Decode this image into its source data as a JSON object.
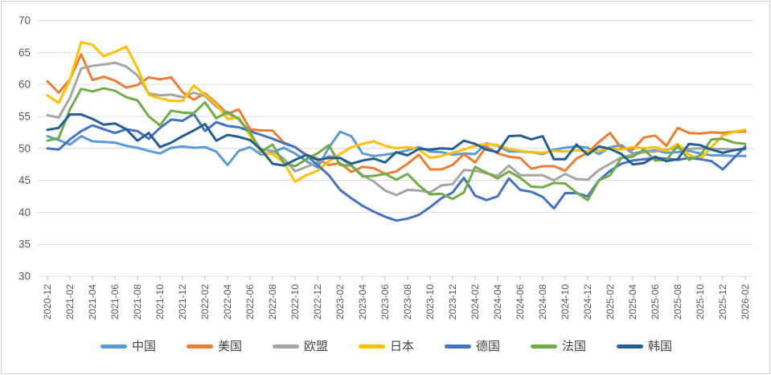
{
  "chart_data": {
    "type": "line",
    "title": "",
    "xlabel": "",
    "ylabel": "",
    "ylim": [
      30,
      70
    ],
    "yticks": [
      30,
      35,
      40,
      45,
      50,
      55,
      60,
      65,
      70
    ],
    "grid": "horizontal",
    "legend_position": "bottom",
    "x_label_every": 2,
    "x": [
      "2020-12",
      "2021-01",
      "2021-02",
      "2021-03",
      "2021-04",
      "2021-05",
      "2021-06",
      "2021-07",
      "2021-08",
      "2021-09",
      "2021-10",
      "2021-11",
      "2021-12",
      "2022-01",
      "2022-02",
      "2022-03",
      "2022-04",
      "2022-05",
      "2022-06",
      "2022-07",
      "2022-08",
      "2022-09",
      "2022-10",
      "2022-11",
      "2022-12",
      "2023-01",
      "2023-02",
      "2023-03",
      "2023-04",
      "2023-05",
      "2023-06",
      "2023-07",
      "2023-08",
      "2023-09",
      "2023-10",
      "2023-11",
      "2023-12",
      "2024-01",
      "2024-02",
      "2024-03",
      "2024-04",
      "2024-05",
      "2024-06",
      "2024-07",
      "2024-08",
      "2024-09",
      "2024-10",
      "2024-11",
      "2024-12",
      "2025-01",
      "2025-02",
      "2025-03",
      "2025-04",
      "2025-05",
      "2025-06",
      "2025-07",
      "2025-08",
      "2025-09",
      "2025-10",
      "2025-11",
      "2025-12",
      "2026-01",
      "2026-02"
    ],
    "series": [
      {
        "id": "china",
        "label": "中国",
        "color": "#5B9BD5",
        "values": [
          51.9,
          51.3,
          50.6,
          51.9,
          51.1,
          51.0,
          50.9,
          50.4,
          50.1,
          49.6,
          49.2,
          50.1,
          50.3,
          50.1,
          50.2,
          49.5,
          47.4,
          49.6,
          50.2,
          49.0,
          49.4,
          50.1,
          49.2,
          48.0,
          47.0,
          50.1,
          52.6,
          51.9,
          49.2,
          48.8,
          49.0,
          49.3,
          49.7,
          50.2,
          49.5,
          49.4,
          49.0,
          49.2,
          49.1,
          50.8,
          50.4,
          49.5,
          49.5,
          49.4,
          49.1,
          49.8,
          50.1,
          50.3,
          50.1,
          49.1,
          50.2,
          50.5,
          49.2,
          49.5,
          49.7,
          49.3,
          49.4,
          49.6,
          49.2,
          48.9,
          48.9,
          48.8,
          48.8
        ]
      },
      {
        "id": "usa",
        "label": "美国",
        "color": "#ED7D31",
        "values": [
          60.5,
          58.7,
          60.8,
          64.7,
          60.7,
          61.2,
          60.6,
          59.5,
          59.9,
          61.1,
          60.8,
          61.1,
          58.8,
          57.6,
          58.6,
          57.1,
          55.4,
          56.1,
          53.0,
          52.8,
          52.8,
          50.9,
          50.2,
          49.0,
          48.4,
          47.4,
          47.7,
          46.3,
          47.1,
          46.9,
          46.0,
          46.4,
          47.6,
          49.0,
          46.7,
          46.7,
          47.4,
          49.1,
          47.8,
          50.3,
          49.2,
          48.7,
          48.5,
          46.8,
          47.2,
          47.2,
          46.5,
          48.4,
          49.3,
          51.0,
          52.4,
          50.0,
          49.8,
          51.7,
          52.0,
          50.4,
          53.2,
          52.4,
          52.3,
          52.5,
          52.4,
          52.6,
          52.6
        ]
      },
      {
        "id": "eu",
        "label": "欧盟",
        "color": "#A5A5A5",
        "values": [
          55.2,
          54.8,
          57.9,
          62.5,
          62.9,
          63.1,
          63.4,
          62.8,
          61.4,
          58.6,
          58.3,
          58.4,
          58.0,
          58.7,
          58.2,
          56.5,
          55.5,
          54.6,
          52.1,
          49.8,
          49.6,
          48.4,
          46.4,
          47.1,
          47.8,
          48.8,
          48.5,
          47.3,
          45.8,
          44.8,
          43.4,
          42.7,
          43.5,
          43.4,
          43.1,
          44.2,
          44.4,
          46.6,
          46.5,
          46.1,
          45.7,
          47.3,
          45.8,
          45.8,
          45.8,
          45.0,
          46.0,
          45.2,
          45.1,
          46.6,
          47.6,
          48.6,
          49.0,
          49.4,
          49.5,
          49.8,
          50.1,
          49.9,
          50.0,
          49.9,
          49.9,
          49.8,
          49.8
        ]
      },
      {
        "id": "japan",
        "label": "日本",
        "color": "#FFC000",
        "values": [
          58.3,
          57.1,
          60.7,
          66.6,
          66.2,
          64.4,
          65.1,
          65.9,
          62.6,
          58.4,
          57.8,
          57.4,
          57.4,
          59.8,
          58.4,
          56.9,
          54.6,
          54.8,
          52.0,
          49.3,
          49.1,
          47.8,
          44.8,
          45.8,
          46.5,
          48.0,
          49.1,
          50.2,
          50.7,
          51.1,
          50.4,
          50.0,
          50.2,
          49.8,
          48.5,
          48.8,
          49.3,
          49.8,
          50.4,
          50.7,
          50.5,
          49.9,
          49.6,
          49.4,
          49.3,
          49.6,
          49.5,
          49.7,
          49.5,
          49.6,
          50.0,
          49.8,
          50.2,
          50.0,
          50.2,
          49.6,
          50.7,
          49.0,
          48.3,
          50.2,
          52.0,
          52.6,
          52.9
        ]
      },
      {
        "id": "germany",
        "label": "德国",
        "color": "#4472C4",
        "values": [
          50.0,
          49.8,
          51.4,
          52.7,
          53.6,
          53.0,
          52.4,
          53.0,
          52.7,
          51.5,
          53.2,
          54.5,
          54.3,
          55.4,
          52.7,
          54.1,
          53.5,
          53.3,
          52.7,
          52.1,
          51.5,
          50.8,
          50.2,
          48.9,
          47.4,
          45.8,
          43.5,
          42.2,
          41.0,
          40.1,
          39.3,
          38.7,
          39.0,
          39.6,
          40.8,
          42.2,
          43.1,
          45.4,
          42.6,
          41.9,
          42.5,
          45.3,
          43.5,
          43.2,
          42.4,
          40.6,
          43.0,
          43.0,
          42.5,
          45.0,
          46.5,
          47.6,
          48.1,
          48.3,
          48.5,
          48.4,
          48.2,
          48.5,
          48.3,
          48.0,
          46.7,
          48.5,
          50.3
        ]
      },
      {
        "id": "france",
        "label": "法国",
        "color": "#70AD47",
        "values": [
          51.2,
          51.6,
          56.1,
          59.3,
          58.9,
          59.4,
          59.0,
          58.0,
          57.5,
          55.0,
          53.6,
          55.9,
          55.6,
          55.5,
          57.2,
          54.7,
          55.7,
          54.6,
          52.5,
          49.5,
          50.6,
          47.7,
          47.2,
          48.3,
          49.2,
          50.5,
          47.4,
          47.3,
          45.6,
          45.7,
          46.0,
          45.1,
          46.0,
          44.2,
          42.8,
          42.9,
          42.1,
          43.1,
          47.1,
          46.2,
          45.3,
          46.4,
          45.4,
          44.0,
          43.9,
          44.6,
          44.5,
          43.1,
          41.9,
          45.0,
          45.8,
          48.5,
          48.7,
          49.8,
          48.1,
          48.2,
          50.4,
          48.2,
          48.9,
          51.4,
          51.5,
          50.9,
          50.7
        ]
      },
      {
        "id": "korea",
        "label": "韩国",
        "color": "#255E91",
        "values": [
          52.9,
          53.2,
          55.3,
          55.3,
          54.6,
          53.7,
          53.9,
          53.0,
          51.2,
          52.4,
          50.2,
          50.9,
          51.9,
          52.8,
          53.8,
          51.2,
          52.1,
          51.8,
          51.3,
          49.8,
          47.6,
          47.3,
          48.2,
          49.0,
          48.2,
          48.5,
          48.5,
          47.6,
          48.1,
          48.4,
          47.8,
          49.4,
          48.9,
          49.9,
          49.8,
          50.0,
          49.9,
          51.2,
          50.7,
          49.8,
          49.4,
          51.9,
          52.0,
          51.4,
          51.9,
          48.3,
          48.3,
          50.6,
          49.0,
          50.3,
          49.9,
          49.1,
          47.5,
          47.7,
          48.7,
          48.0,
          48.3,
          50.7,
          50.5,
          49.8,
          49.3,
          49.7,
          50.0
        ]
      }
    ],
    "style": {
      "grid_color": "#D9D9D9",
      "tick_color": "#BFBFBF",
      "axis_text_color": "#595959",
      "background": "#FFFFFF",
      "line_width": 3
    }
  }
}
